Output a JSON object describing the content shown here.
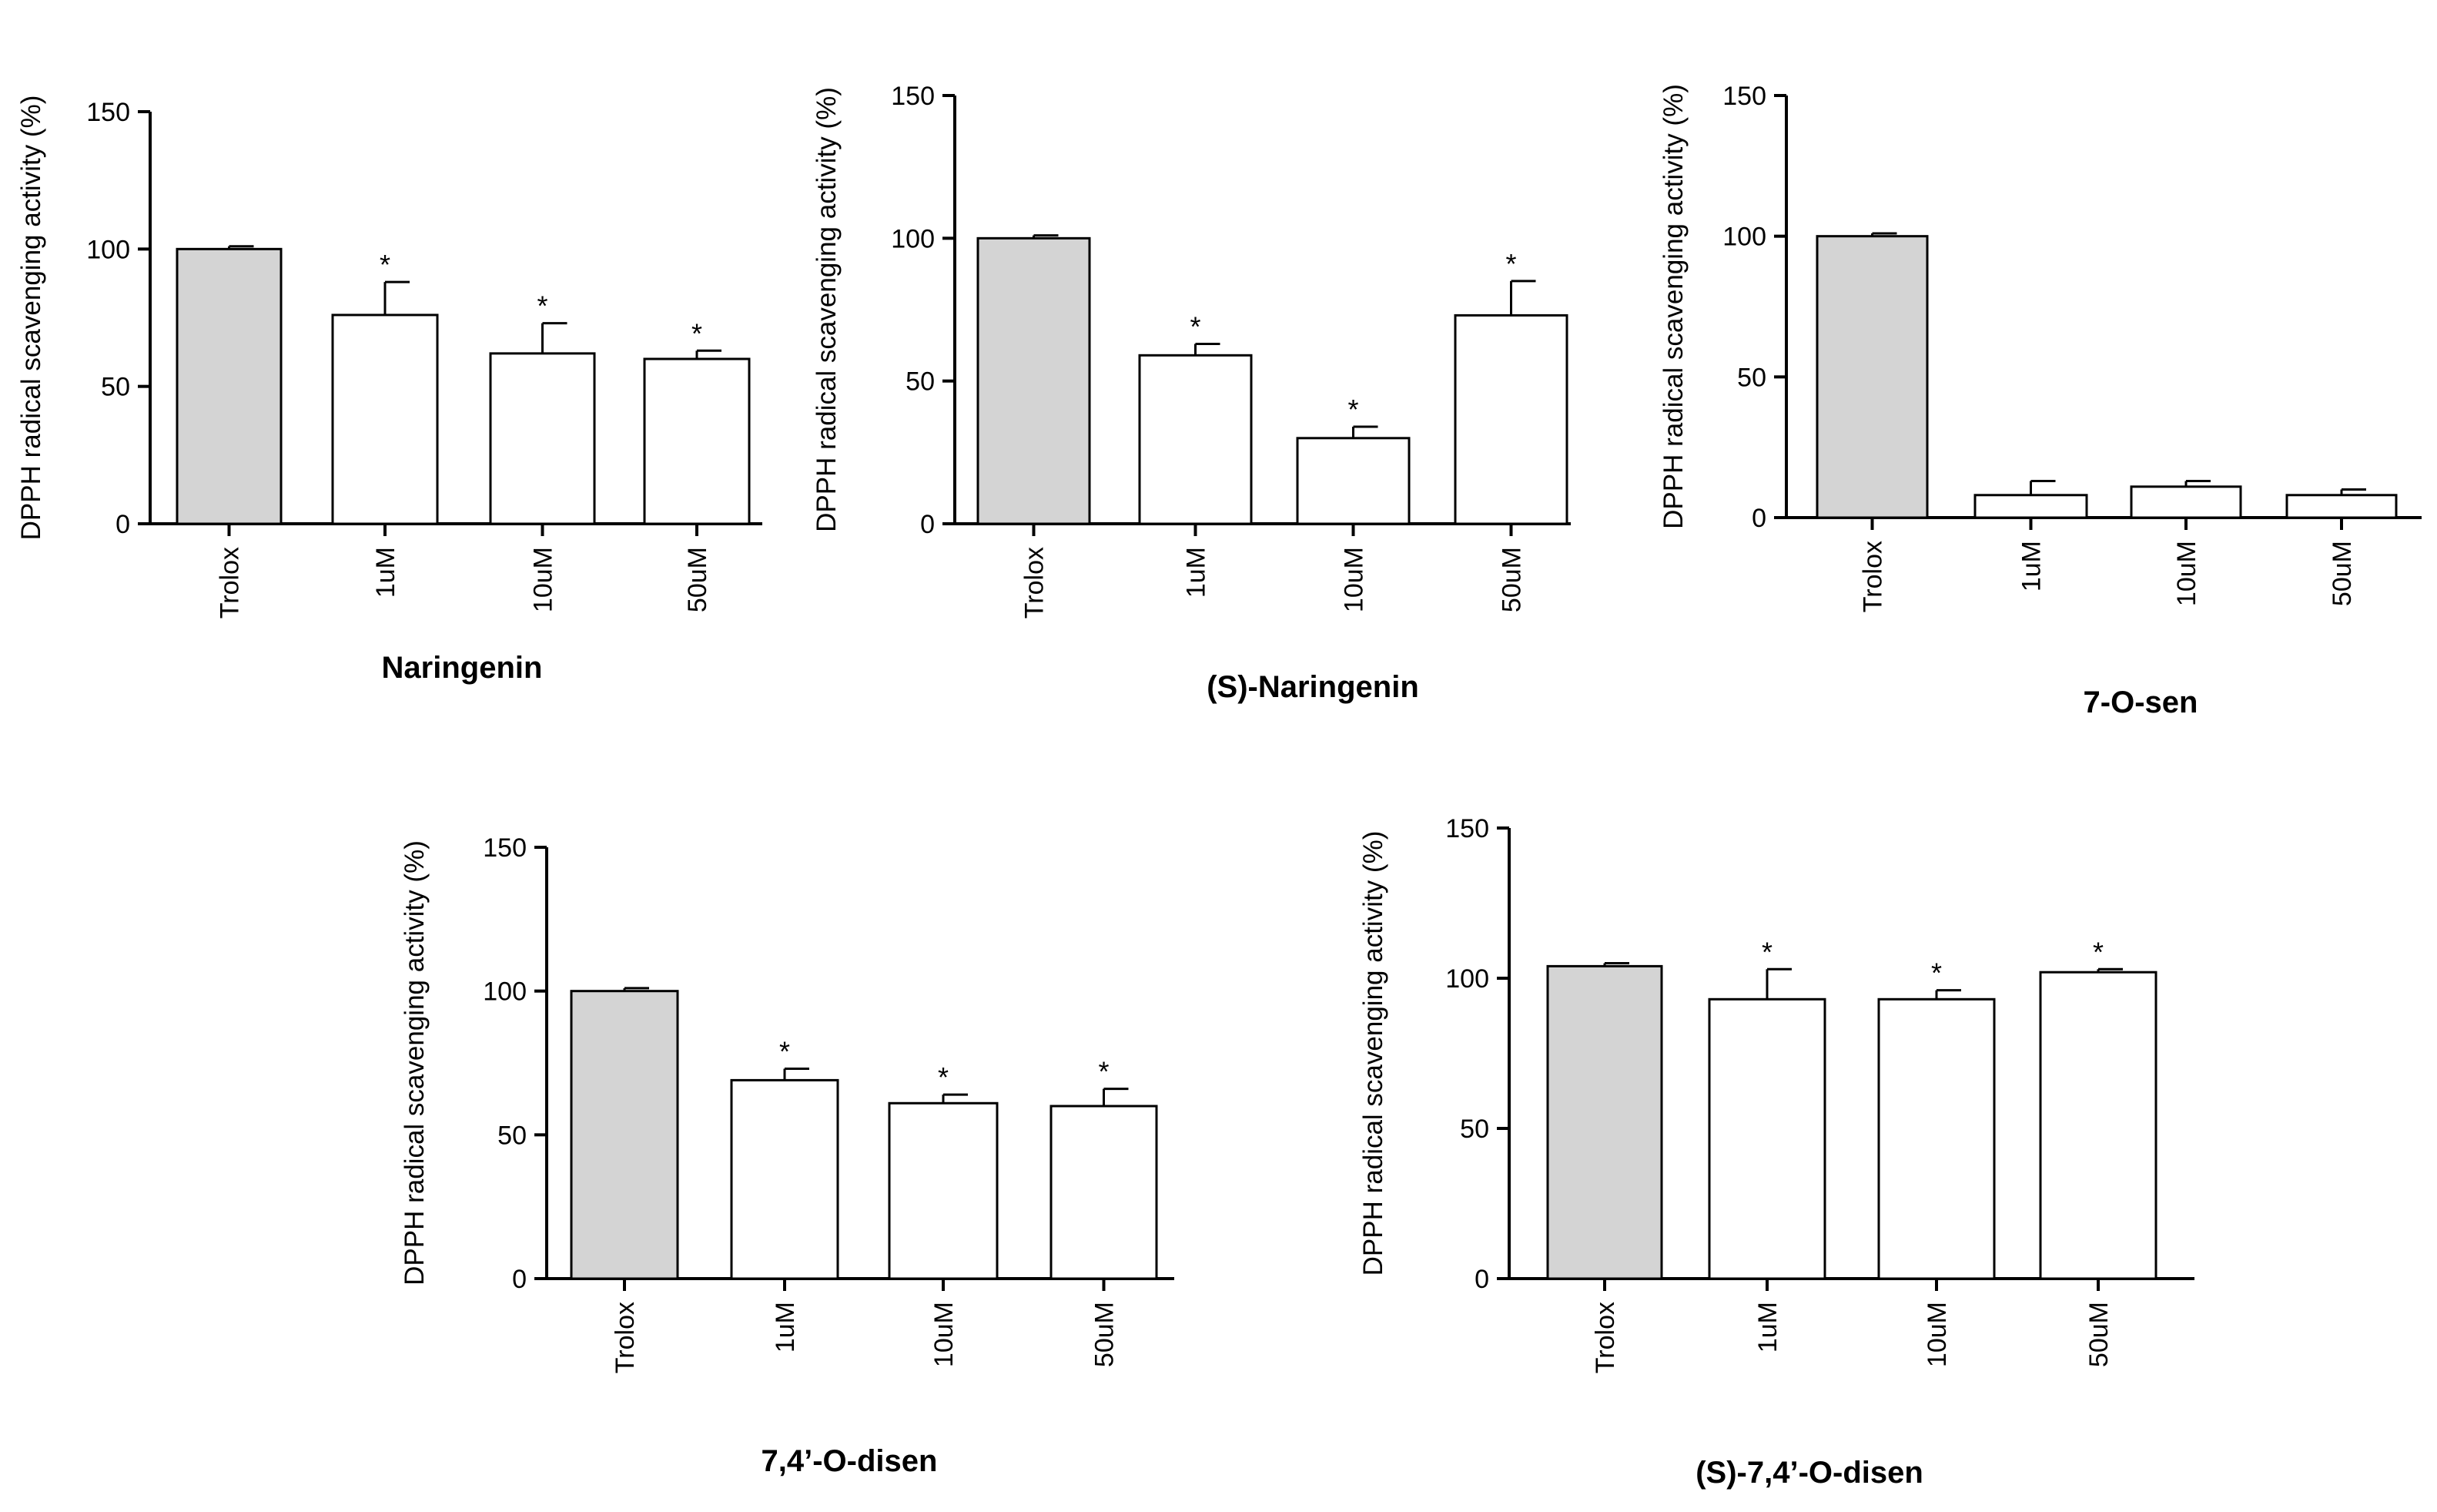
{
  "figure": {
    "description_free": true
  },
  "chart_data": [
    {
      "type": "bar",
      "title": "Naringenin",
      "xlabel": "",
      "ylabel": "DPPH radical scavenging activity (%)",
      "ylim": [
        0,
        150
      ],
      "yticks": [
        "0",
        "50",
        "100",
        "150"
      ],
      "categories": [
        "Trolox",
        "1uM",
        "10uM",
        "50uM"
      ],
      "values": [
        100,
        76,
        62,
        60
      ],
      "errors": [
        1,
        12,
        11,
        3
      ],
      "significant": [
        false,
        true,
        true,
        true
      ],
      "significance_marker": "*",
      "colors": [
        "#d4d4d4",
        "#ffffff",
        "#ffffff",
        "#ffffff"
      ]
    },
    {
      "type": "bar",
      "title": "(S)-Naringenin",
      "xlabel": "",
      "ylabel": "DPPH radical scavenging activity (%)",
      "ylim": [
        0,
        150
      ],
      "yticks": [
        "0",
        "50",
        "100",
        "150"
      ],
      "categories": [
        "Trolox",
        "1uM",
        "10uM",
        "50uM"
      ],
      "values": [
        100,
        59,
        30,
        73
      ],
      "errors": [
        1,
        4,
        4,
        12
      ],
      "significant": [
        false,
        true,
        true,
        true
      ],
      "significance_marker": "*",
      "colors": [
        "#d4d4d4",
        "#ffffff",
        "#ffffff",
        "#ffffff"
      ]
    },
    {
      "type": "bar",
      "title": "7-O-sen",
      "xlabel": "",
      "ylabel": "DPPH radical scavenging activity (%)",
      "ylim": [
        0,
        150
      ],
      "yticks": [
        "0",
        "50",
        "100",
        "150"
      ],
      "categories": [
        "Trolox",
        "1uM",
        "10uM",
        "50uM"
      ],
      "values": [
        100,
        8,
        11,
        8
      ],
      "errors": [
        1,
        5,
        2,
        2
      ],
      "significant": [
        false,
        false,
        false,
        false
      ],
      "significance_marker": "*",
      "colors": [
        "#d4d4d4",
        "#ffffff",
        "#ffffff",
        "#ffffff"
      ]
    },
    {
      "type": "bar",
      "title": "7,4’-O-disen",
      "xlabel": "",
      "ylabel": "DPPH radical scavenging activity (%)",
      "ylim": [
        0,
        150
      ],
      "yticks": [
        "0",
        "50",
        "100",
        "150"
      ],
      "categories": [
        "Trolox",
        "1uM",
        "10uM",
        "50uM"
      ],
      "values": [
        100,
        69,
        61,
        60
      ],
      "errors": [
        1,
        4,
        3,
        6
      ],
      "significant": [
        false,
        true,
        true,
        true
      ],
      "significance_marker": "*",
      "colors": [
        "#d4d4d4",
        "#ffffff",
        "#ffffff",
        "#ffffff"
      ]
    },
    {
      "type": "bar",
      "title": "(S)-7,4’-O-disen",
      "xlabel": "",
      "ylabel": "DPPH radical scavenging activity (%)",
      "ylim": [
        0,
        150
      ],
      "yticks": [
        "0",
        "50",
        "100",
        "150"
      ],
      "categories": [
        "Trolox",
        "1uM",
        "10uM",
        "50uM"
      ],
      "values": [
        104,
        93,
        93,
        102
      ],
      "errors": [
        1,
        10,
        3,
        1
      ],
      "significant": [
        false,
        true,
        true,
        true
      ],
      "significance_marker": "*",
      "colors": [
        "#d4d4d4",
        "#ffffff",
        "#ffffff",
        "#ffffff"
      ]
    }
  ]
}
